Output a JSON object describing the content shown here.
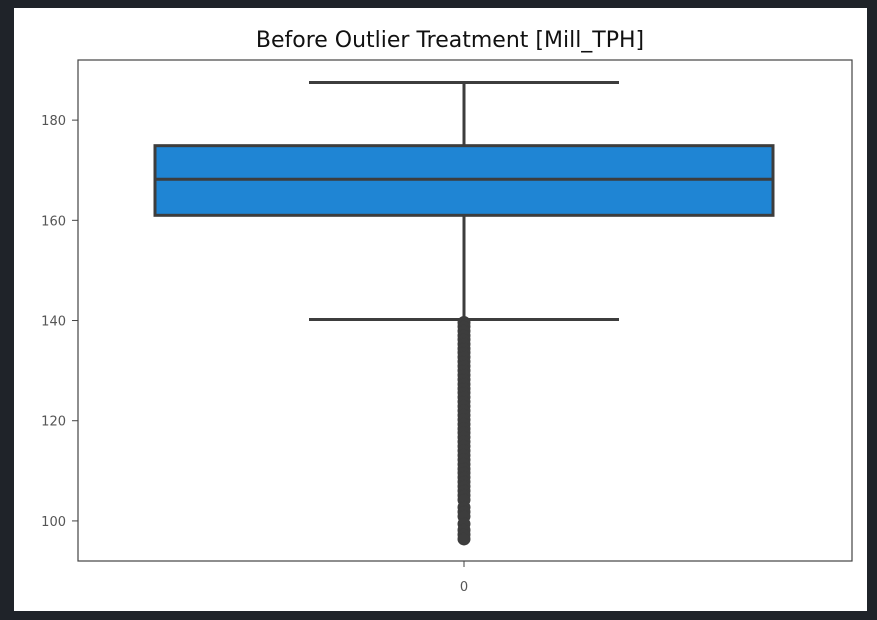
{
  "chart_data": {
    "type": "box",
    "title": "Before Outlier Treatment [Mill_TPH]",
    "xlabel": "",
    "ylabel": "",
    "categories": [
      "0"
    ],
    "ylim": [
      92,
      192
    ],
    "yticks": [
      100,
      120,
      140,
      160,
      180
    ],
    "grid": false,
    "box": {
      "category": "0",
      "min_whisker": 140.2,
      "q1": 161.0,
      "median": 168.2,
      "q3": 174.9,
      "max_whisker": 187.5,
      "outliers": [
        139.6,
        138.8,
        137.9,
        137.0,
        136.2,
        135.3,
        134.4,
        133.6,
        132.7,
        131.8,
        130.9,
        130.0,
        129.1,
        128.2,
        127.3,
        126.4,
        125.6,
        124.7,
        123.8,
        122.9,
        122.0,
        121.1,
        120.2,
        119.3,
        118.4,
        117.6,
        116.7,
        115.8,
        114.9,
        114.0,
        113.1,
        112.2,
        111.3,
        110.4,
        109.6,
        108.7,
        107.8,
        106.9,
        106.0,
        105.1,
        104.2,
        102.7,
        101.8,
        100.9,
        99.4,
        98.2,
        97.3,
        96.4
      ]
    },
    "colors": {
      "box_fill": "#1f85d4",
      "line": "#3d3d3d",
      "axes": "#444444",
      "background": "#ffffff",
      "page_background": "#1f2329"
    }
  }
}
